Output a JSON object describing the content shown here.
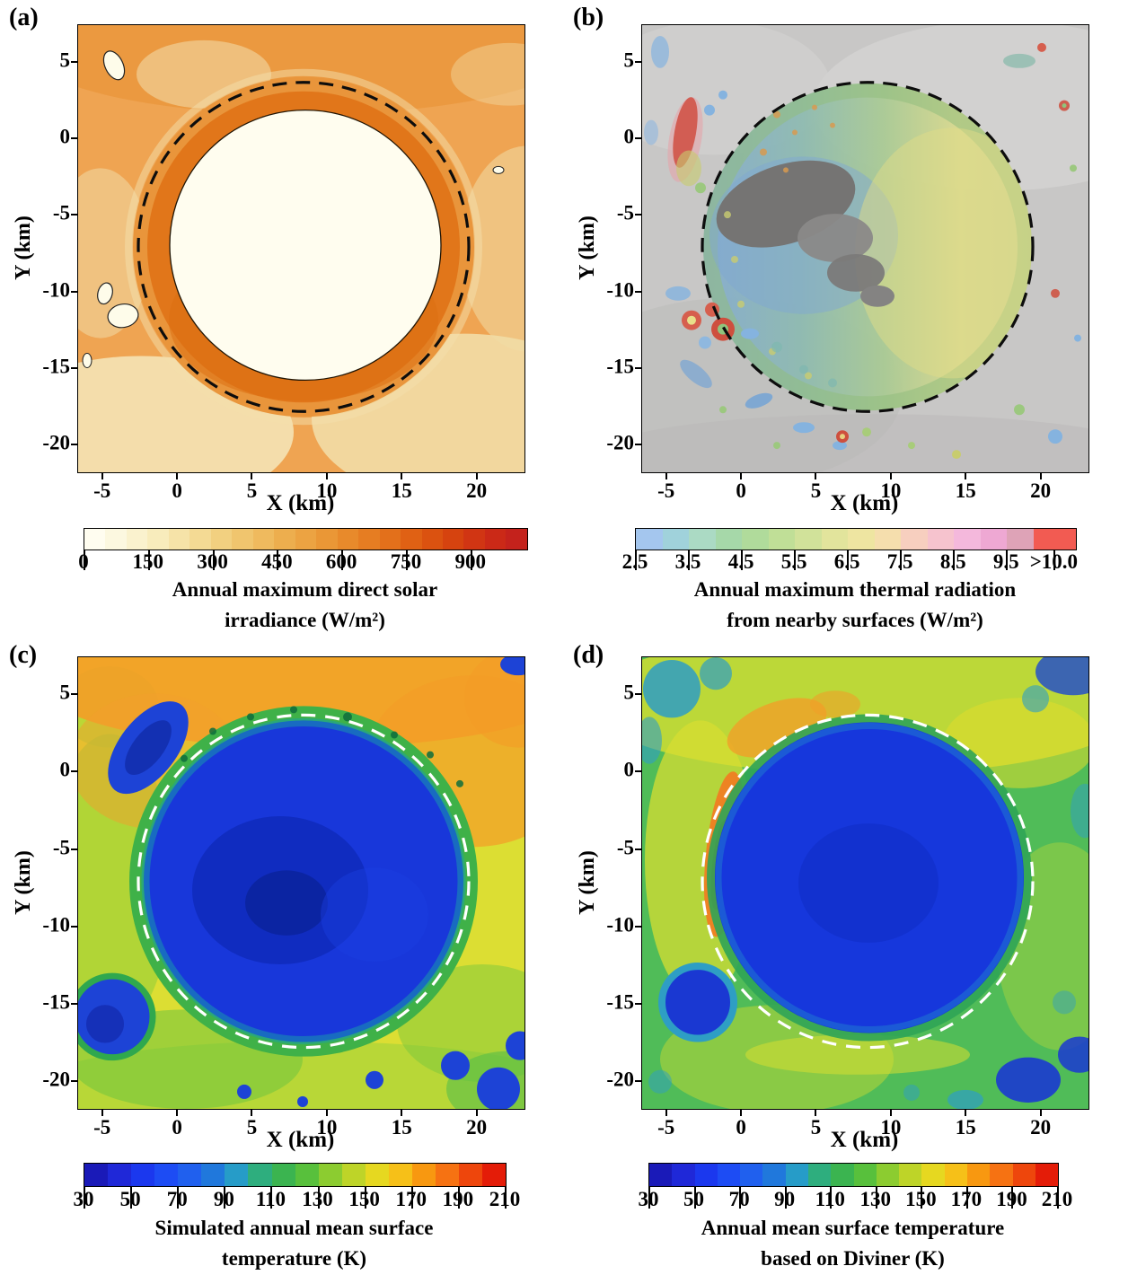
{
  "chart_data": [
    {
      "type": "heatmap",
      "panel_label": "(a)",
      "xlabel": "X (km)",
      "ylabel": "Y (km)",
      "xlim": [
        -6.6,
        23.2
      ],
      "ylim": [
        -21.8,
        7.4
      ],
      "x_ticks": [
        -5,
        0,
        5,
        10,
        15,
        20
      ],
      "y_ticks": [
        5,
        0,
        -5,
        -10,
        -15,
        -20
      ],
      "colorbar": {
        "caption_line1": "Annual maximum direct solar",
        "caption_line2": "irradiance (W/m²)",
        "range": [
          0,
          1030
        ],
        "ticks": [
          {
            "label": "0",
            "pos": 0
          },
          {
            "label": "150",
            "pos": 150
          },
          {
            "label": "300",
            "pos": 300
          },
          {
            "label": "450",
            "pos": 450
          },
          {
            "label": "600",
            "pos": 600
          },
          {
            "label": "750",
            "pos": 750
          },
          {
            "label": "900",
            "pos": 900
          }
        ],
        "segments": [
          {
            "color": "#FFFDF0",
            "w": 1
          },
          {
            "color": "#FCF8E0",
            "w": 1
          },
          {
            "color": "#FAF2CE",
            "w": 1
          },
          {
            "color": "#F8ECBC",
            "w": 1
          },
          {
            "color": "#F6E3A8",
            "w": 1
          },
          {
            "color": "#F4DA94",
            "w": 1
          },
          {
            "color": "#F2D080",
            "w": 1
          },
          {
            "color": "#F0C56E",
            "w": 1
          },
          {
            "color": "#EFBA5E",
            "w": 1
          },
          {
            "color": "#EDAE4E",
            "w": 1
          },
          {
            "color": "#ECA342",
            "w": 1
          },
          {
            "color": "#EA9736",
            "w": 1
          },
          {
            "color": "#E88A2B",
            "w": 1
          },
          {
            "color": "#E67D22",
            "w": 1
          },
          {
            "color": "#E3701B",
            "w": 1
          },
          {
            "color": "#E06114",
            "w": 1
          },
          {
            "color": "#DB5210",
            "w": 1
          },
          {
            "color": "#D6430F",
            "w": 1
          },
          {
            "color": "#D13513",
            "w": 1
          },
          {
            "color": "#CB2917",
            "w": 1
          },
          {
            "color": "#C4221C",
            "w": 1
          }
        ]
      },
      "features": {
        "dashed_circle": {
          "center_km": [
            8.5,
            -7.0
          ],
          "radius_km": 11.0,
          "color": "black"
        },
        "crater_interior": {
          "irradiance_W_m2": 0,
          "appearance": "near-white permanently shadowed floor"
        },
        "crater_rim_annulus": {
          "irradiance_W_m2": "600-850",
          "appearance": "dark orange sunlit inner walls"
        },
        "surrounding_terrain": {
          "irradiance_W_m2": "250-550",
          "appearance": "orange with pale cream patches"
        },
        "small_shadowed_patches_km": [
          [
            -4,
            5
          ],
          [
            -4.6,
            -11.5
          ],
          [
            -3.5,
            -12.5
          ]
        ]
      }
    },
    {
      "type": "heatmap",
      "panel_label": "(b)",
      "xlabel": "X (km)",
      "ylabel": "Y (km)",
      "xlim": [
        -6.6,
        23.2
      ],
      "ylim": [
        -21.8,
        7.4
      ],
      "x_ticks": [
        -5,
        0,
        5,
        10,
        15,
        20
      ],
      "y_ticks": [
        5,
        0,
        -5,
        -10,
        -15,
        -20
      ],
      "colorbar": {
        "caption_line1": "Annual maximum thermal radiation",
        "caption_line2": "from nearby surfaces (W/m²)",
        "range": [
          2.5,
          10.8
        ],
        "ticks": [
          {
            "label": "2.5",
            "pos": 2.5
          },
          {
            "label": "3.5",
            "pos": 3.5
          },
          {
            "label": "4.5",
            "pos": 4.5
          },
          {
            "label": "5.5",
            "pos": 5.5
          },
          {
            "label": "6.5",
            "pos": 6.5
          },
          {
            "label": "7.5",
            "pos": 7.5
          },
          {
            "label": "8.5",
            "pos": 8.5
          },
          {
            "label": "9.5",
            "pos": 9.5
          },
          {
            "label": ">10.0",
            "pos": 10.4
          }
        ],
        "segments": [
          {
            "color": "#A4C6EE",
            "w": 1
          },
          {
            "color": "#A0D2DB",
            "w": 1
          },
          {
            "color": "#ABDAC4",
            "w": 1
          },
          {
            "color": "#A6D8A9",
            "w": 1
          },
          {
            "color": "#B0DB9B",
            "w": 1
          },
          {
            "color": "#C0DF97",
            "w": 1
          },
          {
            "color": "#D1E29A",
            "w": 1
          },
          {
            "color": "#E2E49C",
            "w": 1
          },
          {
            "color": "#EEE5A1",
            "w": 1
          },
          {
            "color": "#F5DEAD",
            "w": 1
          },
          {
            "color": "#F7CFBF",
            "w": 1
          },
          {
            "color": "#F6C3CE",
            "w": 1
          },
          {
            "color": "#F4B8DC",
            "w": 1
          },
          {
            "color": "#EEA8D3",
            "w": 1
          },
          {
            "color": "#DEA3B7",
            "w": 1
          },
          {
            "color": "#F25B52",
            "w": 1.6
          }
        ]
      },
      "features": {
        "background": "grayscale hillshade of lunar terrain",
        "dashed_circle": {
          "center_km": [
            8.5,
            -7.0
          ],
          "radius_km": 11.0,
          "color": "black"
        },
        "crater_interior": {
          "thermal_radiation_W_m2": "3-7",
          "appearance": "blue-green west floor grading to yellow east wall"
        },
        "central_shadow": "dark unshaded patch near crater center-west",
        "hot_spots": "red/pink patches >10 W/m² on north-west exterior slope and in small craters south-west of the rim"
      }
    },
    {
      "type": "heatmap",
      "panel_label": "(c)",
      "xlabel": "X (km)",
      "ylabel": "Y (km)",
      "xlim": [
        -6.6,
        23.2
      ],
      "ylim": [
        -21.8,
        7.4
      ],
      "x_ticks": [
        -5,
        0,
        5,
        10,
        15,
        20
      ],
      "y_ticks": [
        5,
        0,
        -5,
        -10,
        -15,
        -20
      ],
      "colorbar": {
        "caption_line1": "Simulated annual mean surface",
        "caption_line2": "temperature (K)",
        "range": [
          30,
          210
        ],
        "ticks": [
          {
            "label": "30",
            "pos": 30
          },
          {
            "label": "50",
            "pos": 50
          },
          {
            "label": "70",
            "pos": 70
          },
          {
            "label": "90",
            "pos": 90
          },
          {
            "label": "110",
            "pos": 110
          },
          {
            "label": "130",
            "pos": 130
          },
          {
            "label": "150",
            "pos": 150
          },
          {
            "label": "170",
            "pos": 170
          },
          {
            "label": "190",
            "pos": 190
          },
          {
            "label": "210",
            "pos": 210
          }
        ],
        "segments": [
          {
            "color": "#1A1AB8",
            "w": 1
          },
          {
            "color": "#1F28D8",
            "w": 1
          },
          {
            "color": "#1B38EE",
            "w": 1
          },
          {
            "color": "#1D4CF4",
            "w": 1
          },
          {
            "color": "#2060EE",
            "w": 1
          },
          {
            "color": "#2078DC",
            "w": 1
          },
          {
            "color": "#269CC8",
            "w": 1
          },
          {
            "color": "#2EAE7E",
            "w": 1
          },
          {
            "color": "#3BB450",
            "w": 1
          },
          {
            "color": "#58C03C",
            "w": 1
          },
          {
            "color": "#8CCC30",
            "w": 1
          },
          {
            "color": "#BED428",
            "w": 1
          },
          {
            "color": "#E6D820",
            "w": 1
          },
          {
            "color": "#F6C018",
            "w": 1
          },
          {
            "color": "#F89810",
            "w": 1
          },
          {
            "color": "#F67212",
            "w": 1
          },
          {
            "color": "#EE460C",
            "w": 1
          },
          {
            "color": "#E41C08",
            "w": 1
          }
        ]
      },
      "features": {
        "dashed_circle": {
          "center_km": [
            8.5,
            -7.0
          ],
          "radius_km": 11.0,
          "color": "white"
        },
        "crater_interior": {
          "temperature_K": "55-75",
          "appearance": "deep blue with colder ~50-60 K core west of center"
        },
        "rim_transition": "green ring ~90-110 K just inside the dashed rim",
        "surroundings": "yellow ~130-150 K terrain with orange ~150-165 K band north of the crater",
        "cold_patches": "blue shadowed craters north-west, south-west and south-east of the rim"
      }
    },
    {
      "type": "heatmap",
      "panel_label": "(d)",
      "xlabel": "X (km)",
      "ylabel": "Y (km)",
      "xlim": [
        -6.6,
        23.2
      ],
      "ylim": [
        -21.8,
        7.4
      ],
      "x_ticks": [
        -5,
        0,
        5,
        10,
        15,
        20
      ],
      "y_ticks": [
        5,
        0,
        -5,
        -10,
        -15,
        -20
      ],
      "colorbar": {
        "caption_line1": "Annual mean surface temperature",
        "caption_line2": "based on Diviner (K)",
        "range": [
          30,
          210
        ],
        "ticks": [
          {
            "label": "30",
            "pos": 30
          },
          {
            "label": "50",
            "pos": 50
          },
          {
            "label": "70",
            "pos": 70
          },
          {
            "label": "90",
            "pos": 90
          },
          {
            "label": "110",
            "pos": 110
          },
          {
            "label": "130",
            "pos": 130
          },
          {
            "label": "150",
            "pos": 150
          },
          {
            "label": "170",
            "pos": 170
          },
          {
            "label": "190",
            "pos": 190
          },
          {
            "label": "210",
            "pos": 210
          }
        ],
        "segments": [
          {
            "color": "#1A1AB8",
            "w": 1
          },
          {
            "color": "#1F28D8",
            "w": 1
          },
          {
            "color": "#1B38EE",
            "w": 1
          },
          {
            "color": "#1D4CF4",
            "w": 1
          },
          {
            "color": "#2060EE",
            "w": 1
          },
          {
            "color": "#2078DC",
            "w": 1
          },
          {
            "color": "#269CC8",
            "w": 1
          },
          {
            "color": "#2EAE7E",
            "w": 1
          },
          {
            "color": "#3BB450",
            "w": 1
          },
          {
            "color": "#58C03C",
            "w": 1
          },
          {
            "color": "#8CCC30",
            "w": 1
          },
          {
            "color": "#BED428",
            "w": 1
          },
          {
            "color": "#E6D820",
            "w": 1
          },
          {
            "color": "#F6C018",
            "w": 1
          },
          {
            "color": "#F89810",
            "w": 1
          },
          {
            "color": "#F67212",
            "w": 1
          },
          {
            "color": "#EE460C",
            "w": 1
          },
          {
            "color": "#E41C08",
            "w": 1
          }
        ]
      },
      "features": {
        "dashed_circle": {
          "center_km": [
            8.5,
            -7.0
          ],
          "radius_km": 11.0,
          "color": "white"
        },
        "crater_interior": {
          "temperature_K": "60-70",
          "appearance": "uniform blue disk slightly inside the dashed rim"
        },
        "surroundings": "green ~110-130 K with yellow ~140 K band north/west and an orange-red ~160-180 K arc hugging the west rim",
        "cold_patches": "blue blobs south-west of rim, at north corners and in the south-east"
      }
    }
  ]
}
